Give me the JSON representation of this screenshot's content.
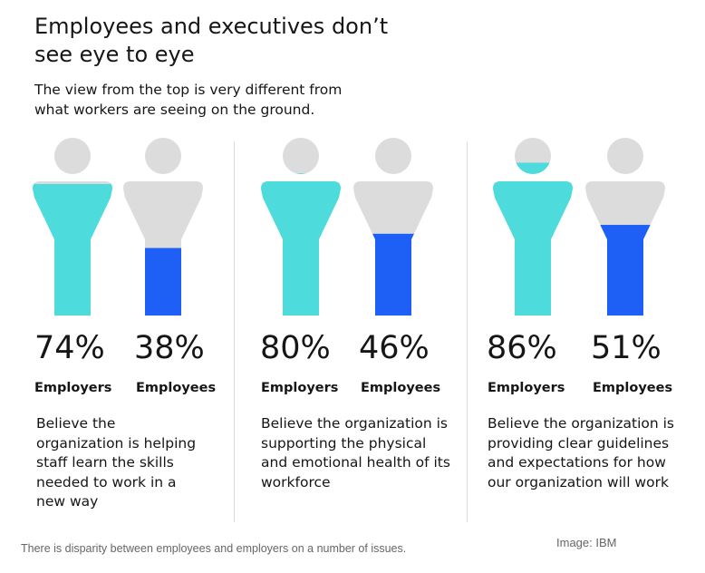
{
  "title": "Employees and executives don’t see eye to eye",
  "subtitle": "The view from the top is very different from what workers are seeing on the ground.",
  "colors": {
    "employer_fill": "#4ddbdb",
    "employee_fill": "#1e5ff5",
    "figure_empty": "#dcdcdc",
    "text": "#161616",
    "caption": "#666666"
  },
  "chart_data": {
    "type": "bar",
    "title": "Employees and executives don’t see eye to eye",
    "subtitle": "The view from the top is very different from what workers are seeing on the ground.",
    "series_names": [
      "Employers",
      "Employees"
    ],
    "groups": [
      {
        "description": "Believe the organization is helping staff learn the skills needed to work in a new way",
        "employers": {
          "label": "Employers",
          "value": 74,
          "display": "74%"
        },
        "employees": {
          "label": "Employees",
          "value": 38,
          "display": "38%"
        }
      },
      {
        "description": "Believe the organization is supporting the physical and emotional health of its workforce",
        "employers": {
          "label": "Employers",
          "value": 80,
          "display": "80%"
        },
        "employees": {
          "label": "Employees",
          "value": 46,
          "display": "46%"
        }
      },
      {
        "description": "Believe the organization is providing clear guidelines and expectations for how our organization will work",
        "employers": {
          "label": "Employers",
          "value": 86,
          "display": "86%"
        },
        "employees": {
          "label": "Employees",
          "value": 51,
          "display": "51%"
        }
      }
    ],
    "ylim": [
      0,
      100
    ]
  },
  "caption": "There is disparity between employees and employers on a number of issues.",
  "credit": "Image: IBM"
}
